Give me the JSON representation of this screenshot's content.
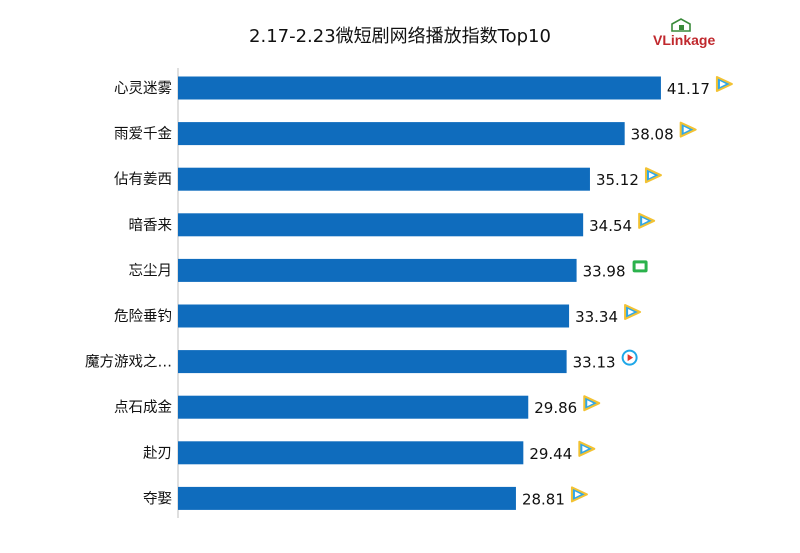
{
  "brand": {
    "logo_text": "VLinkage"
  },
  "platform_colors": {
    "tencent-video": "#2fa6e8",
    "iqiyi": "#2bb24c",
    "youku": "#1ea7e8"
  },
  "chart_data": {
    "type": "bar",
    "orientation": "horizontal",
    "title": "2.17-2.23微短剧网络播放指数Top10",
    "xlabel": "",
    "ylabel": "",
    "xlim": [
      0,
      45
    ],
    "grid": false,
    "bar_color": "#0f6cbd",
    "categories": [
      "心灵迷雾",
      "雨爱千金",
      "佔有姜西",
      "暗香来",
      "忘尘月",
      "危险垂钓",
      "魔方游戏之…",
      "点石成金",
      "赴刃",
      "夺娶"
    ],
    "values": [
      41.17,
      38.08,
      35.12,
      34.54,
      33.98,
      33.34,
      33.13,
      29.86,
      29.44,
      28.81
    ],
    "value_labels": [
      "41.17",
      "38.08",
      "35.12",
      "34.54",
      "33.98",
      "33.34",
      "33.13",
      "29.86",
      "29.44",
      "28.81"
    ],
    "platform_icons": [
      "tencent-video-icon",
      "tencent-video-icon",
      "tencent-video-icon",
      "tencent-video-icon",
      "iqiyi-icon",
      "tencent-video-icon",
      "youku-icon",
      "tencent-video-icon",
      "tencent-video-icon",
      "tencent-video-icon"
    ]
  }
}
